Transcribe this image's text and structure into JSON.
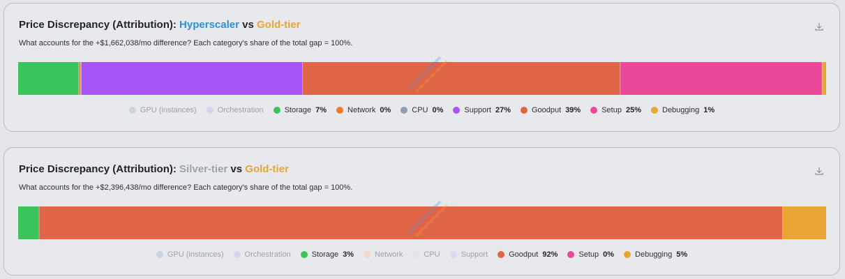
{
  "cards": [
    {
      "title_prefix": "Price Discrepancy (Attribution):",
      "entity_a": "Hyperscaler",
      "entity_a_color": "#2d8ed1",
      "vs": "vs",
      "entity_b": "Gold-tier",
      "entity_b_color": "#e8a534",
      "subtitle": "What accounts for the +$1,662,038/mo difference? Each category's share of the total gap = 100%.",
      "download_icon": "download-icon",
      "watermark_icon": "semianalysis-watermark",
      "legend": [
        {
          "label": "GPU (instances)",
          "color": "#c9d4e0",
          "pct": "",
          "active": false
        },
        {
          "label": "Orchestration",
          "color": "#d6d4ee",
          "pct": "",
          "active": false
        },
        {
          "label": "Storage",
          "color": "#3cc45c",
          "pct": "7%",
          "active": true
        },
        {
          "label": "Network",
          "color": "#f47a2a",
          "pct": "0%",
          "active": true
        },
        {
          "label": "CPU",
          "color": "#8f9db0",
          "pct": "0%",
          "active": true
        },
        {
          "label": "Support",
          "color": "#a855f7",
          "pct": "27%",
          "active": true
        },
        {
          "label": "Goodput",
          "color": "#e06446",
          "pct": "39%",
          "active": true
        },
        {
          "label": "Setup",
          "color": "#ec4899",
          "pct": "25%",
          "active": true
        },
        {
          "label": "Debugging",
          "color": "#e8a534",
          "pct": "1%",
          "active": true
        }
      ]
    },
    {
      "title_prefix": "Price Discrepancy (Attribution):",
      "entity_a": "Silver-tier",
      "entity_a_color": "#9aa2ad",
      "vs": "vs",
      "entity_b": "Gold-tier",
      "entity_b_color": "#e8a534",
      "subtitle": "What accounts for the +$2,396,438/mo difference? Each category's share of the total gap = 100%.",
      "download_icon": "download-icon",
      "watermark_icon": "semianalysis-watermark",
      "legend": [
        {
          "label": "GPU (instances)",
          "color": "#c9d4e0",
          "pct": "",
          "active": false
        },
        {
          "label": "Orchestration",
          "color": "#d6d4ee",
          "pct": "",
          "active": false
        },
        {
          "label": "Storage",
          "color": "#3cc45c",
          "pct": "3%",
          "active": true
        },
        {
          "label": "Network",
          "color": "#f5d6cc",
          "pct": "",
          "active": false
        },
        {
          "label": "CPU",
          "color": "#dfe2e6",
          "pct": "",
          "active": false
        },
        {
          "label": "Support",
          "color": "#e2d6f5",
          "pct": "",
          "active": false
        },
        {
          "label": "Goodput",
          "color": "#e06446",
          "pct": "92%",
          "active": true
        },
        {
          "label": "Setup",
          "color": "#ec4899",
          "pct": "0%",
          "active": true
        },
        {
          "label": "Debugging",
          "color": "#e8a534",
          "pct": "5%",
          "active": true
        }
      ]
    }
  ],
  "chart_data": [
    {
      "type": "bar",
      "orientation": "horizontal-stacked",
      "title": "Price Discrepancy (Attribution): Hyperscaler vs Gold-tier",
      "xlim": [
        0,
        100
      ],
      "series": [
        {
          "name": "Storage",
          "values": [
            7.5
          ],
          "color": "#3cc45c"
        },
        {
          "name": "Network",
          "values": [
            0.2
          ],
          "color": "#f47a2a"
        },
        {
          "name": "CPU",
          "values": [
            0.1
          ],
          "color": "#8f9db0"
        },
        {
          "name": "Support",
          "values": [
            27.4
          ],
          "color": "#a855f7"
        },
        {
          "name": "Goodput",
          "values": [
            39.3
          ],
          "color": "#e06446"
        },
        {
          "name": "Setup",
          "values": [
            25.0
          ],
          "color": "#ec4899"
        },
        {
          "name": "Debugging",
          "values": [
            0.5
          ],
          "color": "#e8a534"
        }
      ]
    },
    {
      "type": "bar",
      "orientation": "horizontal-stacked",
      "title": "Price Discrepancy (Attribution): Silver-tier vs Gold-tier",
      "xlim": [
        0,
        100
      ],
      "series": [
        {
          "name": "Storage",
          "values": [
            2.6
          ],
          "color": "#3cc45c"
        },
        {
          "name": "Goodput",
          "values": [
            92.0
          ],
          "color": "#e06446"
        },
        {
          "name": "Setup",
          "values": [
            0.0
          ],
          "color": "#ec4899"
        },
        {
          "name": "Debugging",
          "values": [
            5.4
          ],
          "color": "#e8a534"
        }
      ]
    }
  ]
}
